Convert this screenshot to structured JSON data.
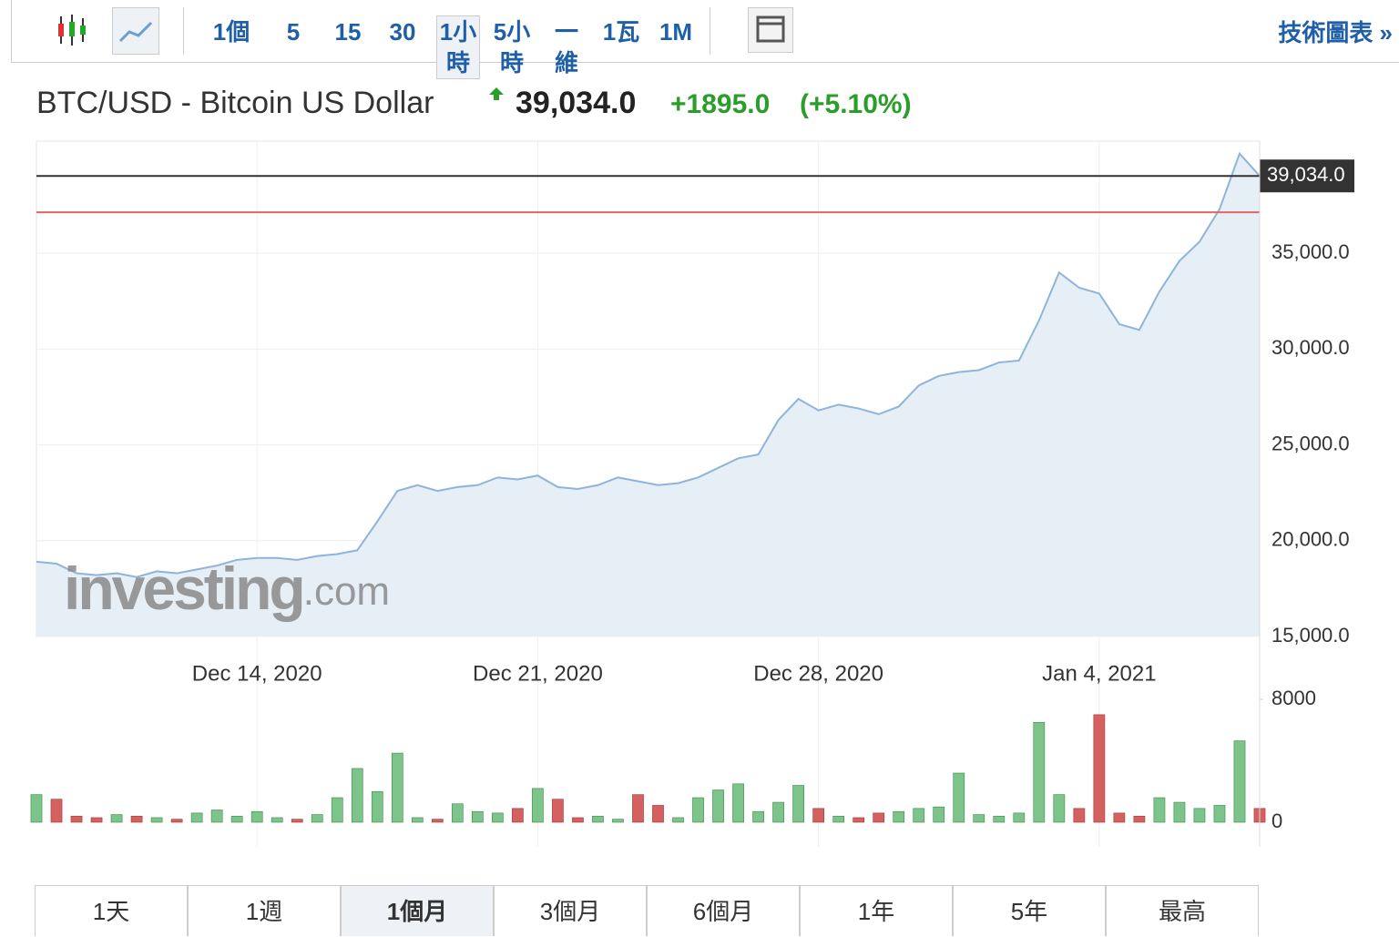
{
  "toolbar": {
    "intervals": [
      "1個",
      "5",
      "15",
      "30",
      "1小時",
      "5小時",
      "一維",
      "1瓦",
      "1M"
    ],
    "active_interval": 4,
    "link": "技術圖表 »"
  },
  "header": {
    "title": "BTC/USD - Bitcoin US Dollar",
    "price": "39,034.0",
    "change": "+1895.0",
    "change_pct": "(+5.10%)"
  },
  "chart_data": [
    {
      "type": "area",
      "watermark": "investing",
      "watermark_suffix": ".com",
      "color": "#8fb4dc",
      "fill": "#e6eef6",
      "categories": [
        null,
        null,
        null,
        null,
        null,
        null,
        null,
        null,
        null,
        null,
        null,
        "Dec 14, 2020",
        null,
        null,
        null,
        null,
        null,
        null,
        null,
        null,
        null,
        null,
        null,
        null,
        null,
        "Dec 21, 2020",
        null,
        null,
        null,
        null,
        null,
        null,
        null,
        null,
        null,
        null,
        null,
        null,
        null,
        "Dec 28, 2020",
        null,
        null,
        null,
        null,
        null,
        null,
        null,
        null,
        null,
        null,
        null,
        null,
        null,
        "Jan 4, 2021",
        null,
        null,
        null,
        null,
        null,
        null,
        null,
        null
      ],
      "values": [
        18900,
        18800,
        18300,
        18200,
        18300,
        18100,
        18400,
        18300,
        18500,
        18700,
        19000,
        19100,
        19100,
        19000,
        19200,
        19300,
        19500,
        21000,
        22600,
        22900,
        22600,
        22800,
        22900,
        23300,
        23200,
        23400,
        22800,
        22700,
        22900,
        23300,
        23100,
        22900,
        23000,
        23300,
        23800,
        24300,
        24500,
        26300,
        27400,
        26800,
        27100,
        26900,
        26600,
        27000,
        28100,
        28600,
        28800,
        28900,
        29300,
        29400,
        31500,
        34000,
        33200,
        32900,
        31300,
        31000,
        33000,
        34600,
        35600,
        37300,
        40200,
        39034
      ],
      "ylim": [
        15000,
        40850
      ],
      "yticks": [
        {
          "value": 15000,
          "label": "15,000.0"
        },
        {
          "value": 20000,
          "label": "20,000.0"
        },
        {
          "value": 25000,
          "label": "25,000.0"
        },
        {
          "value": 30000,
          "label": "30,000.0"
        },
        {
          "value": 35000,
          "label": "35,000.0"
        }
      ],
      "reference_lines": [
        {
          "value": 39034,
          "label": "39,034.0",
          "color": "#333333"
        },
        {
          "value": 37139,
          "color": "#e06666"
        }
      ],
      "grid": true
    },
    {
      "type": "bar",
      "up_color": "#7cc48a",
      "down_color": "#d46060",
      "values": [
        1800,
        1500,
        400,
        300,
        500,
        400,
        300,
        200,
        600,
        800,
        400,
        700,
        300,
        200,
        500,
        1600,
        3500,
        2000,
        4500,
        300,
        200,
        1200,
        700,
        600,
        900,
        2200,
        1500,
        300,
        400,
        200,
        1800,
        1100,
        300,
        1600,
        2100,
        2500,
        700,
        1300,
        2400,
        900,
        400,
        300,
        600,
        700,
        900,
        1000,
        3200,
        500,
        400,
        600,
        6500,
        1800,
        900,
        7000,
        600,
        400,
        1600,
        1300,
        900,
        1100,
        5300,
        900
      ],
      "ylim": [
        0,
        8000
      ],
      "yticks": [
        0,
        8000
      ]
    }
  ],
  "ranges": [
    "1天",
    "1週",
    "1個月",
    "3個月",
    "6個月",
    "1年",
    "5年",
    "最高"
  ],
  "active_range": 2
}
